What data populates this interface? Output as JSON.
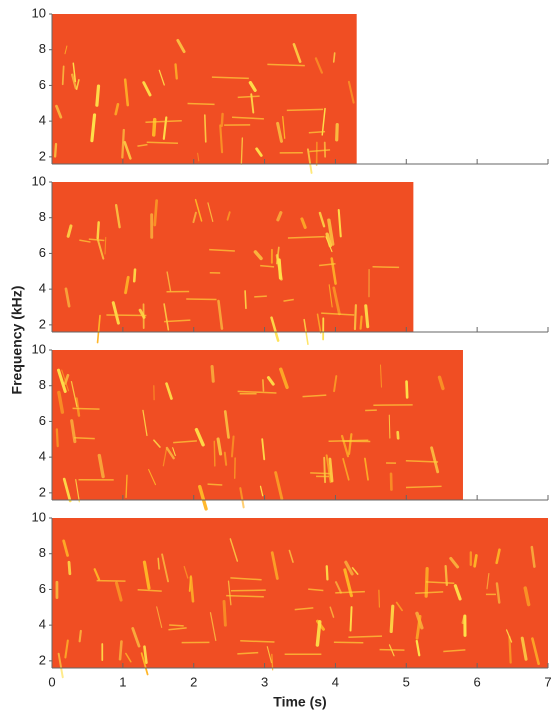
{
  "ylabel": "Frequency (kHz)",
  "xlabel": "Time (s)",
  "chart_data": [
    {
      "type": "spectrogram",
      "duration": 4.3,
      "color": "#f04e23",
      "xlim": [
        0,
        7
      ],
      "xticks": [
        0,
        1,
        2,
        3,
        4,
        5,
        6,
        7
      ],
      "ylim": [
        1.6,
        10
      ],
      "yticks": [
        2,
        4,
        6,
        8,
        10
      ]
    },
    {
      "type": "spectrogram",
      "duration": 5.1,
      "color": "#f04e23",
      "xlim": [
        0,
        7
      ],
      "xticks": [
        0,
        1,
        2,
        3,
        4,
        5,
        6,
        7
      ],
      "ylim": [
        1.6,
        10
      ],
      "yticks": [
        2,
        4,
        6,
        8,
        10
      ]
    },
    {
      "type": "spectrogram",
      "duration": 5.8,
      "color": "#f04e23",
      "xlim": [
        0,
        7
      ],
      "xticks": [
        0,
        1,
        2,
        3,
        4,
        5,
        6,
        7
      ],
      "ylim": [
        1.6,
        10
      ],
      "yticks": [
        2,
        4,
        6,
        8,
        10
      ]
    },
    {
      "type": "spectrogram",
      "duration": 7,
      "color": "#f04e23",
      "xlim": [
        0,
        7
      ],
      "xticks": [
        0,
        1,
        2,
        3,
        4,
        5,
        6,
        7
      ],
      "ylim": [
        1.6,
        10
      ],
      "yticks": [
        2,
        4,
        6,
        8,
        10
      ]
    }
  ]
}
